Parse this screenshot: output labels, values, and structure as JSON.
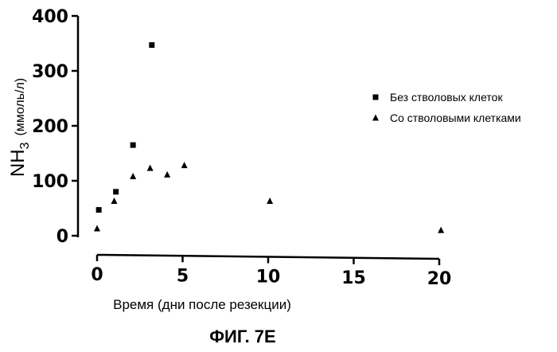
{
  "chart_data": {
    "type": "scatter",
    "title": "",
    "xlabel": "Время (дни после резекции)",
    "ylabel_main": "NH",
    "ylabel_sub": "3",
    "ylabel_unit": "(ммоль/л)",
    "xlim": [
      0,
      20
    ],
    "ylim": [
      0,
      400
    ],
    "x_ticks": [
      0,
      5,
      10,
      15,
      20
    ],
    "y_ticks": [
      0,
      100,
      200,
      300,
      400
    ],
    "grid": false,
    "legend_position": "right",
    "series": [
      {
        "name": "Без стволовых клеток",
        "marker": "square",
        "color": "#000000",
        "points": [
          {
            "x": 0.1,
            "y": 47
          },
          {
            "x": 1.1,
            "y": 80
          },
          {
            "x": 2.1,
            "y": 165
          },
          {
            "x": 3.2,
            "y": 347
          }
        ]
      },
      {
        "name": "Со стволовыми клетками",
        "marker": "triangle",
        "color": "#000000",
        "points": [
          {
            "x": 0.0,
            "y": 13
          },
          {
            "x": 1.0,
            "y": 63
          },
          {
            "x": 2.1,
            "y": 108
          },
          {
            "x": 3.1,
            "y": 123
          },
          {
            "x": 4.1,
            "y": 111
          },
          {
            "x": 5.1,
            "y": 128
          },
          {
            "x": 10.1,
            "y": 63
          },
          {
            "x": 20.1,
            "y": 10
          }
        ]
      }
    ]
  },
  "caption": "ФИГ. 7E"
}
